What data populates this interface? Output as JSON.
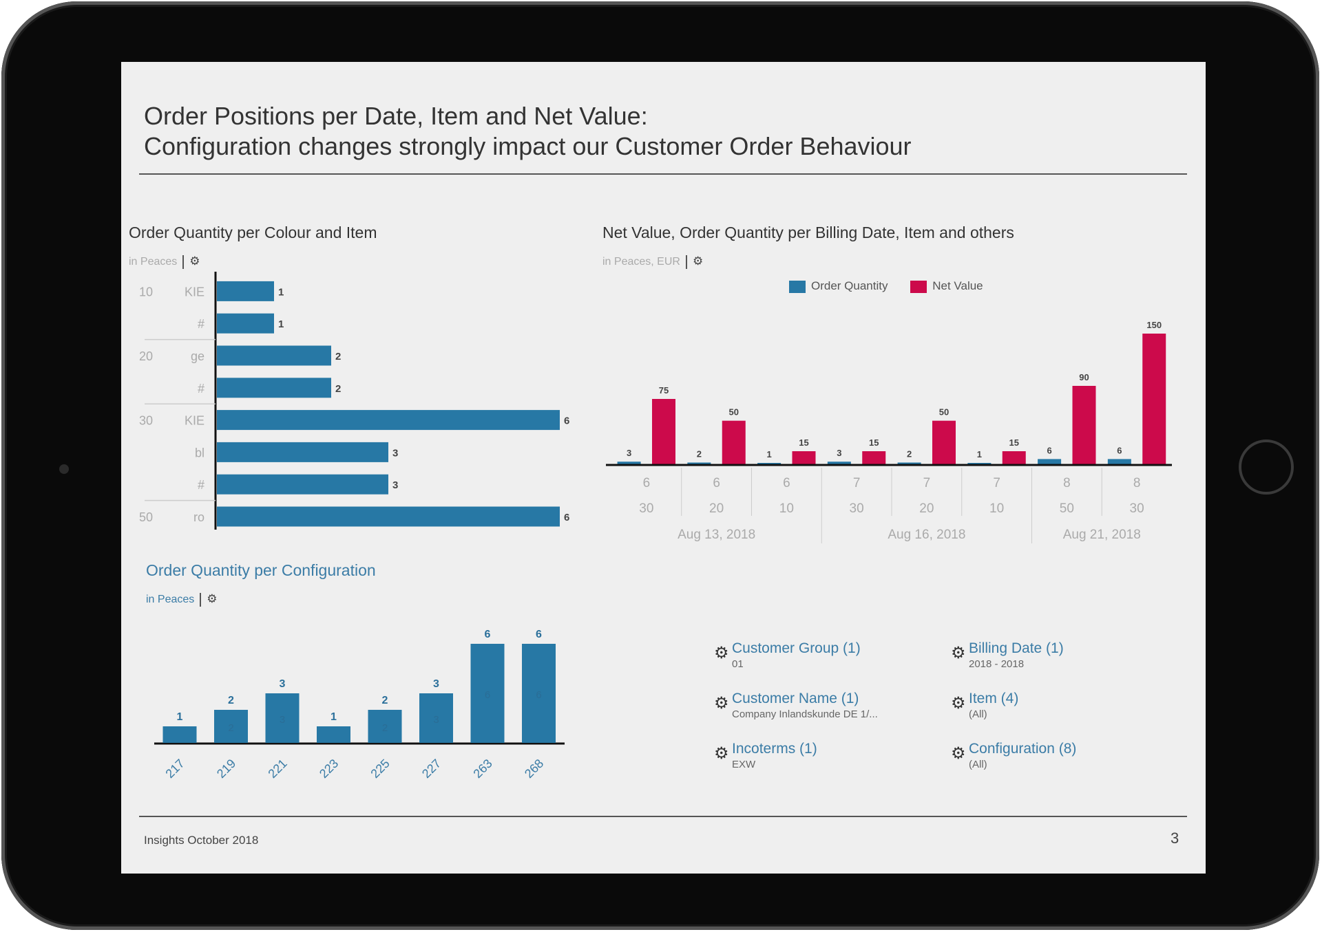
{
  "header": {
    "title_line1": "Order Positions per Date, Item and Net Value:",
    "title_line2": "Configuration changes strongly impact our Customer Order Behaviour"
  },
  "colors": {
    "blue": "#2778a5",
    "red": "#cc0a4b",
    "accent_text": "#3b7ca6"
  },
  "chart_data": [
    {
      "type": "bar",
      "orientation": "horizontal",
      "title": "Order Quantity per Colour and Item",
      "subtitle": "in Peaces",
      "settings_icon": "gear-icon",
      "rows": [
        {
          "item": "10",
          "colour": "KIE",
          "value": 1
        },
        {
          "item": "",
          "colour": "#",
          "value": 1
        },
        {
          "item": "20",
          "colour": "ge",
          "value": 2
        },
        {
          "item": "",
          "colour": "#",
          "value": 2
        },
        {
          "item": "30",
          "colour": "KIE",
          "value": 6
        },
        {
          "item": "",
          "colour": "bl",
          "value": 3
        },
        {
          "item": "",
          "colour": "#",
          "value": 3
        },
        {
          "item": "50",
          "colour": "ro",
          "value": 6
        }
      ],
      "xlim": [
        0,
        6
      ]
    },
    {
      "type": "bar",
      "title": "Net Value, Order Quantity per Billing Date, Item and others",
      "subtitle": "in Peaces, EUR",
      "settings_icon": "gear-icon",
      "legend": "top-center",
      "categories": [
        {
          "level1": "6",
          "level2": "30"
        },
        {
          "level1": "6",
          "level2": "20"
        },
        {
          "level1": "6",
          "level2": "10"
        },
        {
          "level1": "7",
          "level2": "30"
        },
        {
          "level1": "7",
          "level2": "20"
        },
        {
          "level1": "7",
          "level2": "10"
        },
        {
          "level1": "8",
          "level2": "50"
        },
        {
          "level1": "8",
          "level2": "30"
        }
      ],
      "date_groups": [
        {
          "label": "Aug 13, 2018",
          "span": 3
        },
        {
          "label": "Aug 16, 2018",
          "span": 3
        },
        {
          "label": "Aug 21, 2018",
          "span": 2
        }
      ],
      "series": [
        {
          "name": "Order Quantity",
          "values": [
            3,
            2,
            1,
            3,
            2,
            1,
            6,
            6
          ]
        },
        {
          "name": "Net Value",
          "values": [
            75,
            50,
            15,
            15,
            50,
            15,
            90,
            150
          ]
        }
      ],
      "ylim": [
        0,
        150
      ]
    },
    {
      "type": "bar",
      "title": "Order Quantity per Configuration",
      "subtitle": "in Peaces",
      "settings_icon": "gear-icon",
      "categories": [
        "217",
        "219",
        "221",
        "223",
        "225",
        "227",
        "263",
        "268"
      ],
      "values": [
        1,
        2,
        3,
        1,
        2,
        3,
        6,
        6
      ],
      "ylim": [
        0,
        6
      ]
    }
  ],
  "filters": [
    {
      "title": "Customer Group (1)",
      "value": "01"
    },
    {
      "title": "Billing Date (1)",
      "value": "2018 - 2018"
    },
    {
      "title": "Customer Name (1)",
      "value": "Company Inlandskunde DE 1/..."
    },
    {
      "title": "Item (4)",
      "value": "(All)"
    },
    {
      "title": "Incoterms (1)",
      "value": "EXW"
    },
    {
      "title": "Configuration (8)",
      "value": "(All)"
    }
  ],
  "footer": {
    "text": "Insights October 2018",
    "page": "3"
  }
}
